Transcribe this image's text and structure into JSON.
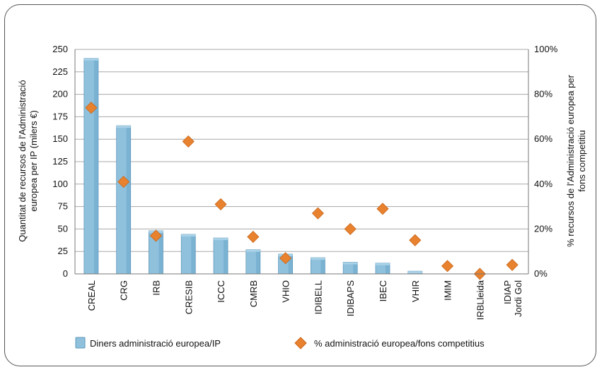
{
  "chart_data": {
    "type": "bar",
    "categories": [
      "CREAL",
      "CRG",
      "IRB",
      "CRESIB",
      "ICCC",
      "CMRB",
      "VHIO",
      "IDIBELL",
      "IDIBAPS",
      "IBEC",
      "VHIR",
      "IMIM",
      "IRBLleida",
      "IDIAP Jordi Gol"
    ],
    "series": [
      {
        "name": "Diners administració europea/IP",
        "axis": "left",
        "values": [
          240,
          165,
          48,
          44,
          40,
          27,
          22,
          18,
          13,
          12,
          3,
          0,
          0,
          0
        ]
      },
      {
        "name": "% administració europea/fons competitius",
        "axis": "right",
        "values": [
          74,
          41,
          17,
          59,
          31,
          16.5,
          7,
          27,
          20,
          29,
          15,
          3.5,
          0,
          4
        ]
      }
    ],
    "ylabel": "Quantitat de recursos de l'Administració europea per IP (milers €)",
    "y2label": "% recursos de l'Administració europea per fons competitiu",
    "ylim": [
      0,
      250
    ],
    "y2lim": [
      0,
      100
    ],
    "yticks": [
      "0",
      "25",
      "50",
      "75",
      "100",
      "125",
      "150",
      "175",
      "200",
      "225",
      "250"
    ],
    "y2ticks": [
      "0%",
      "20%",
      "40%",
      "60%",
      "80%",
      "100%"
    ],
    "grid": true,
    "legend": "bottom",
    "colors": {
      "bar": "#8fc1dd",
      "bar_edge": "#5e97b8",
      "marker": "#e8822e",
      "grid": "#a8a8a8"
    }
  }
}
